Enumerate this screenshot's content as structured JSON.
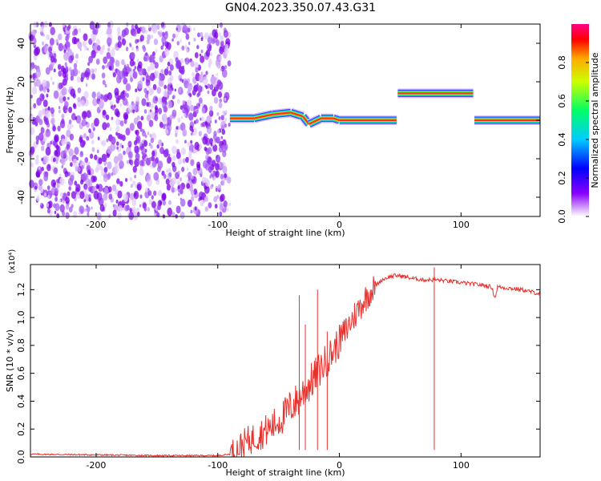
{
  "title": "GN04.2023.350.07.43.G31",
  "chart_data": [
    {
      "type": "heatmap",
      "title": "GN04.2023.350.07.43.G31",
      "xlabel": "Height of straight line (km)",
      "ylabel": "Frequency (Hz)",
      "xlim": [
        -254,
        165
      ],
      "ylim": [
        -50,
        50
      ],
      "xticks": [
        -200,
        -100,
        0,
        100
      ],
      "yticks": [
        -40,
        -20,
        0,
        20,
        40
      ],
      "colorbar": {
        "label": "Normalized spectral amplitude",
        "range": [
          0.0,
          1.0
        ],
        "ticks": [
          "0.0",
          "0.2",
          "0.4",
          "0.6",
          "0.8"
        ]
      },
      "noise_region": {
        "x": [
          -254,
          -90
        ],
        "y": [
          -50,
          50
        ],
        "amplitude": 0.1
      },
      "signal_ridge": [
        {
          "x": -90,
          "y": 1
        },
        {
          "x": -70,
          "y": 1
        },
        {
          "x": -55,
          "y": 3
        },
        {
          "x": -40,
          "y": 4
        },
        {
          "x": -30,
          "y": 2
        },
        {
          "x": -25,
          "y": -2
        },
        {
          "x": -15,
          "y": 1
        },
        {
          "x": -5,
          "y": 1
        },
        {
          "x": 0,
          "y": 0
        },
        {
          "x": 47,
          "y": 0
        },
        {
          "x": 48,
          "y": 14
        },
        {
          "x": 110,
          "y": 14
        },
        {
          "x": 111,
          "y": 0
        },
        {
          "x": 165,
          "y": 0
        }
      ]
    },
    {
      "type": "line",
      "xlabel": "Height of straight line (km)",
      "ylabel": "SNR (10 * v/v)",
      "yscale_label": "(x10⁴)",
      "xlim": [
        -254,
        165
      ],
      "ylim": [
        0.0,
        1.38
      ],
      "xticks": [
        -200,
        -100,
        0,
        100
      ],
      "yticks": [
        "0.0",
        "0.2",
        "0.4",
        "0.6",
        "0.8",
        "1.0",
        "1.2"
      ],
      "series": [
        {
          "color": "#e8302c",
          "x": [
            -254,
            -150,
            -100,
            -90,
            -85,
            -78,
            -70,
            -62,
            -55,
            -50,
            -45,
            -40,
            -35,
            -30,
            -25,
            -20,
            -15,
            -10,
            -5,
            0,
            5,
            10,
            15,
            20,
            25,
            30,
            35,
            40,
            45,
            50,
            60,
            70,
            80,
            90,
            100,
            110,
            120,
            125,
            128,
            130,
            140,
            150,
            165
          ],
          "y": [
            0.02,
            0.01,
            0.01,
            0.02,
            0.05,
            0.1,
            0.14,
            0.18,
            0.22,
            0.26,
            0.3,
            0.36,
            0.4,
            0.46,
            0.52,
            0.58,
            0.64,
            0.7,
            0.76,
            0.83,
            0.9,
            0.98,
            1.05,
            1.12,
            1.18,
            1.23,
            1.27,
            1.29,
            1.3,
            1.3,
            1.28,
            1.27,
            1.27,
            1.26,
            1.25,
            1.24,
            1.23,
            1.22,
            1.14,
            1.22,
            1.21,
            1.2,
            1.17
          ]
        }
      ],
      "spikes": [
        {
          "x": -33,
          "y": 1.16
        },
        {
          "x": -28,
          "y": 0.95
        },
        {
          "x": -18,
          "y": 1.2
        },
        {
          "x": -10,
          "y": 0.9
        },
        {
          "x": 78,
          "y": 1.36
        }
      ]
    }
  ]
}
